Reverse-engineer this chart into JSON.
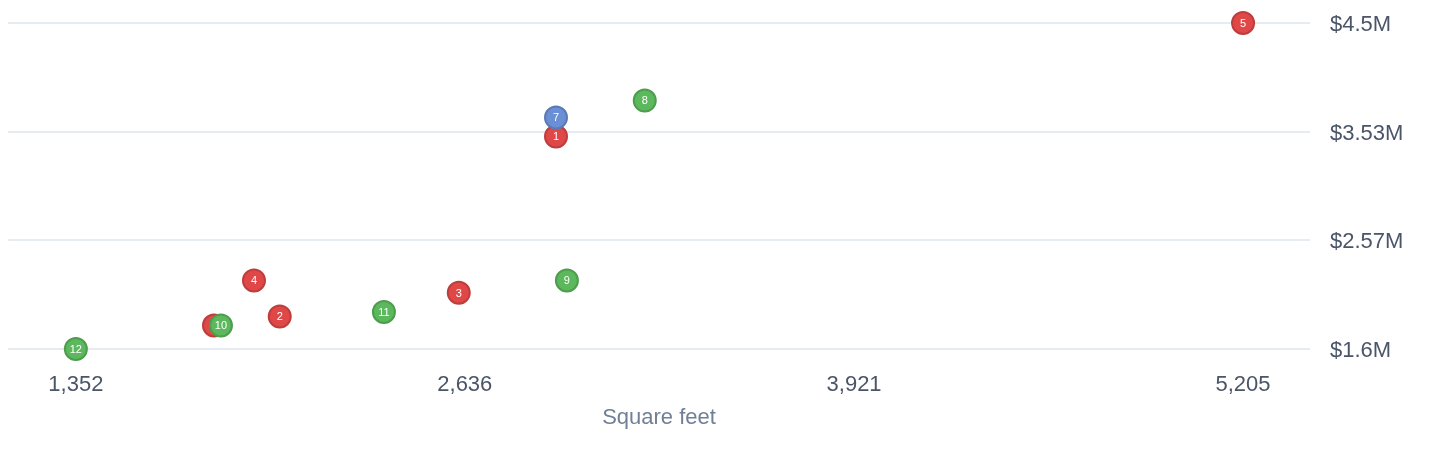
{
  "chart_data": {
    "type": "scatter",
    "xlabel": "Square feet",
    "grid": "y",
    "marker": "circle",
    "xlim": [
      1128,
      5426
    ],
    "xticks": [
      {
        "value": 1352,
        "label": "1,352"
      },
      {
        "value": 2636,
        "label": "2,636"
      },
      {
        "value": 3921,
        "label": "3,921"
      },
      {
        "value": 5205,
        "label": "5,205"
      }
    ],
    "ylim": [
      1.6,
      4.5
    ],
    "yticks": [
      {
        "value": 1.6,
        "label": "$1.6M"
      },
      {
        "value": 2.57,
        "label": "$2.57M"
      },
      {
        "value": 3.53,
        "label": "$3.53M"
      },
      {
        "value": 4.5,
        "label": "$4.5M"
      }
    ],
    "series": [
      {
        "color": "#e04848",
        "x": [
          2937,
          2025,
          2616,
          1940,
          5205,
          1808
        ],
        "values": [
          3.49,
          1.89,
          2.1,
          2.21,
          4.5,
          1.81
        ]
      },
      {
        "color": "#6b8fd4",
        "x": [
          2937
        ],
        "values": [
          3.66
        ]
      },
      {
        "color": "#5cb85c",
        "x": [
          3230,
          2973,
          1831,
          2369,
          1352
        ],
        "values": [
          3.81,
          2.21,
          1.81,
          1.93,
          1.6
        ]
      }
    ],
    "annotations": [
      {
        "text": "1",
        "x": 2937,
        "y": 3.49
      },
      {
        "text": "2",
        "x": 2025,
        "y": 1.89
      },
      {
        "text": "3",
        "x": 2616,
        "y": 2.1
      },
      {
        "text": "4",
        "x": 1940,
        "y": 2.21
      },
      {
        "text": "5",
        "x": 5205,
        "y": 4.5
      },
      {
        "text": "7",
        "x": 2937,
        "y": 3.66
      },
      {
        "text": "8",
        "x": 3230,
        "y": 3.81
      },
      {
        "text": "9",
        "x": 2973,
        "y": 2.21
      },
      {
        "text": "10",
        "x": 1831,
        "y": 1.81
      },
      {
        "text": "11",
        "x": 2369,
        "y": 1.93
      },
      {
        "text": "12",
        "x": 1352,
        "y": 1.6
      }
    ]
  }
}
